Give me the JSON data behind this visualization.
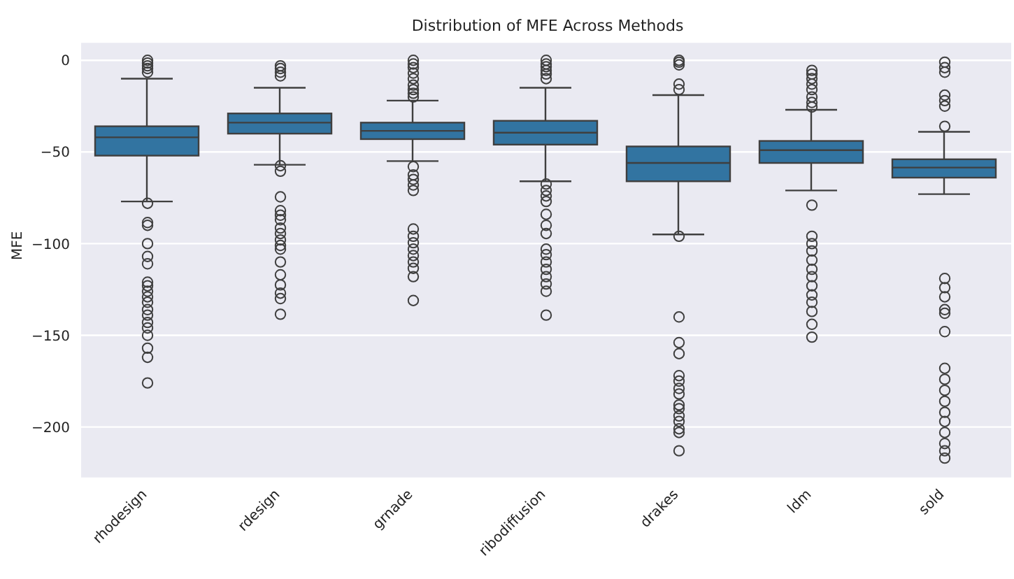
{
  "chart_data": {
    "type": "box",
    "title": "Distribution of MFE Across Methods",
    "ylabel": "MFE",
    "categories": [
      "rhodesign",
      "rdesign",
      "grnade",
      "ribodiffusion",
      "drakes",
      "ldm",
      "sold"
    ],
    "color": "#3274a1",
    "ylim": [
      -228,
      10
    ],
    "yticks": [
      0,
      -50,
      -100,
      -150,
      -200
    ],
    "grid": "y",
    "marker": "circle",
    "boxes": [
      {
        "low": -77,
        "q1": -52,
        "median": -42,
        "q3": -36,
        "high": -10,
        "outliers": [
          0,
          -1.5,
          -3,
          -4.5,
          -6.5,
          -78,
          -88.5,
          -90,
          -100,
          -107,
          -111,
          -121,
          -123,
          -126,
          -129,
          -132,
          -136,
          -139,
          -143,
          -146,
          -150,
          -157,
          -162,
          -176
        ]
      },
      {
        "low": -57,
        "q1": -40,
        "median": -34,
        "q3": -29,
        "high": -15,
        "outliers": [
          -3,
          -4.5,
          -6.5,
          -8.5,
          -57.5,
          -60.5,
          -74.5,
          -82,
          -84.5,
          -87,
          -91.5,
          -94.5,
          -98,
          -101,
          -103,
          -110,
          -117,
          -122.5,
          -127,
          -130,
          -138.5
        ]
      },
      {
        "low": -55,
        "q1": -43,
        "median": -38.5,
        "q3": -34,
        "high": -22,
        "outliers": [
          0,
          -2,
          -4,
          -7,
          -10,
          -13.5,
          -16,
          -18,
          -20,
          -58,
          -62.5,
          -65,
          -68,
          -71,
          -92,
          -96,
          -99.5,
          -103,
          -106.5,
          -110,
          -113.5,
          -118,
          -131
        ]
      },
      {
        "low": -66,
        "q1": -46,
        "median": -39.5,
        "q3": -33,
        "high": -15,
        "outliers": [
          0,
          -2,
          -3.5,
          -5.5,
          -7.5,
          -10,
          -67.5,
          -71,
          -74,
          -77,
          -84,
          -90,
          -94.5,
          -103,
          -106,
          -110,
          -114,
          -118,
          -122,
          -126,
          -139
        ]
      },
      {
        "low": -95,
        "q1": -66,
        "median": -56,
        "q3": -47,
        "high": -19,
        "outliers": [
          0,
          -1,
          -2.5,
          -13,
          -16,
          -96,
          -140,
          -154,
          -160,
          -172,
          -175,
          -179,
          -182,
          -188,
          -190,
          -194,
          -197,
          -201,
          -203,
          -213
        ]
      },
      {
        "low": -71,
        "q1": -56,
        "median": -49,
        "q3": -44,
        "high": -27,
        "outliers": [
          -5.5,
          -7.5,
          -10,
          -13,
          -16,
          -20,
          -23,
          -25.5,
          -79,
          -96,
          -100,
          -104,
          -109,
          -114,
          -118,
          -123,
          -128,
          -132,
          -137,
          -144,
          -151
        ]
      },
      {
        "low": -73,
        "q1": -64,
        "median": -58.5,
        "q3": -54,
        "high": -39,
        "outliers": [
          -1,
          -4,
          -6.5,
          -19,
          -22,
          -25,
          -36,
          -119,
          -124,
          -129,
          -136,
          -138,
          -148,
          -168,
          -174,
          -180,
          -186,
          -192,
          -197,
          -203,
          -209,
          -213,
          -217
        ]
      }
    ]
  }
}
